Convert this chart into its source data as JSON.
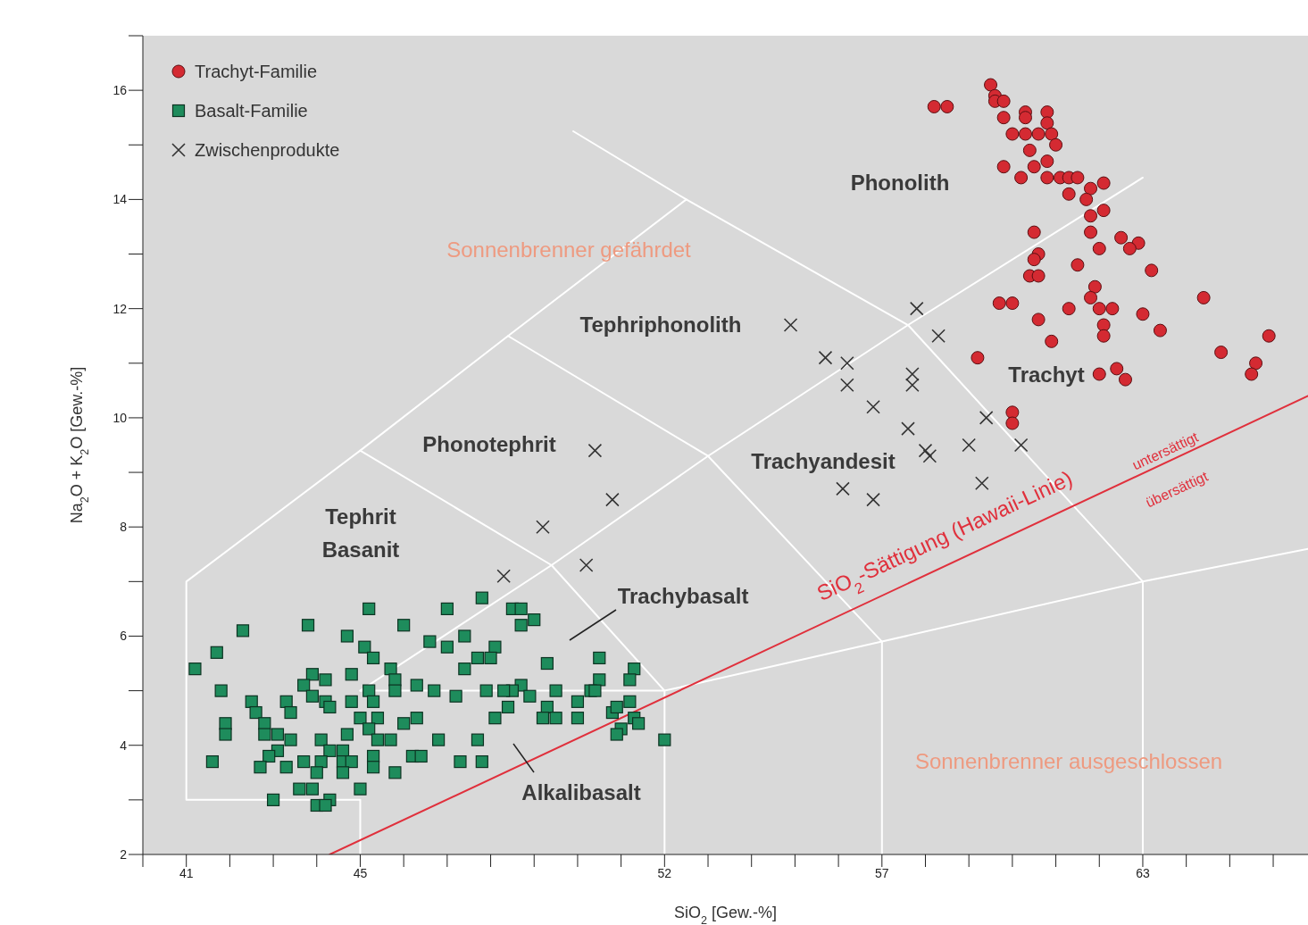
{
  "chart_data": {
    "type": "scatter",
    "xlabel": "SiO$_{2}$ [Gew.-%]",
    "ylabel": "Na$_{2}$O + K$_{2}$O [Gew.-%]",
    "xlim": [
      40,
      66.8
    ],
    "xticks": [
      {
        "value": 40,
        "label": null
      },
      41,
      {
        "value": 42,
        "label": null
      },
      {
        "value": 43,
        "label": null
      },
      {
        "value": 44,
        "label": null
      },
      45,
      {
        "value": 46,
        "label": null
      },
      {
        "value": 47,
        "label": null
      },
      {
        "value": 48,
        "label": null
      },
      {
        "value": 49,
        "label": null
      },
      {
        "value": 50,
        "label": null
      },
      {
        "value": 51,
        "label": null
      },
      52,
      {
        "value": 53,
        "label": null
      },
      {
        "value": 54,
        "label": null
      },
      {
        "value": 55,
        "label": null
      },
      {
        "value": 56,
        "label": null
      },
      57,
      {
        "value": 58,
        "label": null
      },
      {
        "value": 59,
        "label": null
      },
      {
        "value": 60,
        "label": null
      },
      {
        "value": 61,
        "label": null
      },
      {
        "value": 62,
        "label": null
      },
      63,
      {
        "value": 64,
        "label": null
      },
      {
        "value": 65,
        "label": null
      },
      {
        "value": 66,
        "label": null
      }
    ],
    "ylim": [
      2,
      17
    ],
    "yticks": [
      2,
      {
        "value": 3,
        "label": null
      },
      4,
      {
        "value": 5,
        "label": null
      },
      6,
      {
        "value": 7,
        "label": null
      },
      8,
      {
        "value": 9,
        "label": null
      },
      10,
      {
        "value": 11,
        "label": null
      },
      12,
      {
        "value": 13,
        "label": null
      },
      14,
      {
        "value": 15,
        "label": null
      },
      16,
      {
        "value": 17,
        "label": null
      }
    ],
    "legend": "top left",
    "series": [
      {
        "name": "Trachyt-Familie",
        "marker": "circle",
        "color": "#d42a32",
        "x": [
          58.2,
          58.5,
          59.5,
          59.6,
          59.6,
          59.8,
          59.8,
          60.3,
          60.8,
          60.3,
          60.8,
          60.0,
          60.3,
          60.6,
          60.9,
          61.0,
          60.4,
          60.8,
          59.8,
          60.2,
          60.5,
          60.8,
          61.1,
          61.3,
          61.3,
          61.5,
          61.8,
          62.1,
          61.7,
          62.1,
          61.8,
          61.8,
          62.0,
          62.5,
          62.9,
          62.7,
          60.5,
          60.6,
          60.5,
          60.4,
          60.6,
          61.5,
          63.2,
          61.9,
          61.8,
          62.0,
          62.3,
          62.1,
          62.1,
          59.7,
          60.0,
          61.3,
          60.6,
          63.0,
          64.4,
          63.4,
          60.9,
          59.2,
          65.9,
          64.8,
          65.6,
          65.5,
          62.0,
          62.4,
          62.6,
          60.0,
          60.0
        ],
        "values": [
          15.7,
          15.7,
          16.1,
          15.9,
          15.8,
          15.8,
          15.5,
          15.6,
          15.6,
          15.5,
          15.4,
          15.2,
          15.2,
          15.2,
          15.2,
          15.0,
          14.9,
          14.7,
          14.6,
          14.4,
          14.6,
          14.4,
          14.4,
          14.4,
          14.1,
          14.4,
          14.2,
          14.3,
          14.0,
          13.8,
          13.7,
          13.4,
          13.1,
          13.3,
          13.2,
          13.1,
          13.4,
          13.0,
          12.9,
          12.6,
          12.6,
          12.8,
          12.7,
          12.4,
          12.2,
          12.0,
          12.0,
          11.7,
          11.5,
          12.1,
          12.1,
          12.0,
          11.8,
          11.9,
          12.2,
          11.6,
          11.4,
          11.1,
          11.5,
          11.2,
          11.0,
          10.8,
          10.8,
          10.9,
          10.7,
          10.1,
          9.9
        ]
      },
      {
        "name": "Basalt-Familie",
        "marker": "square",
        "color": "#1e8c5c",
        "x": [
          45.2,
          46.0,
          43.8,
          42.3,
          44.7,
          46.6,
          41.7,
          41.2,
          45.1,
          45.3,
          45.7,
          45.8,
          41.8,
          43.9,
          44.2,
          43.7,
          44.8,
          46.3,
          45.8,
          43.9,
          44.2,
          42.5,
          43.3,
          45.2,
          45.3,
          44.8,
          44.3,
          43.4,
          42.6,
          41.9,
          41.9,
          42.8,
          45.0,
          45.4,
          46.0,
          46.3,
          42.8,
          44.7,
          45.2,
          43.1,
          43.4,
          44.1,
          45.4,
          45.7,
          43.1,
          44.3,
          44.6,
          42.9,
          43.7,
          44.1,
          44.6,
          44.8,
          45.3,
          46.2,
          46.4,
          41.6,
          42.7,
          43.3,
          45.3,
          44.0,
          44.6,
          45.8,
          43.6,
          43.9,
          45.0,
          43.0,
          44.0,
          44.3,
          44.2,
          47.8,
          47.0,
          48.5,
          48.7,
          49.0,
          48.7,
          47.0,
          47.4,
          48.1,
          48.0,
          47.7,
          47.4,
          49.3,
          50.5,
          51.3,
          51.2,
          50.5,
          50.3,
          50.4,
          50.0,
          49.5,
          48.7,
          48.9,
          48.5,
          48.3,
          47.9,
          48.4,
          48.1,
          47.2,
          46.7,
          49.3,
          49.2,
          49.5,
          50.0,
          50.8,
          50.9,
          51.2,
          51.3,
          51.0,
          50.9,
          51.4,
          52.0,
          46.8,
          47.7,
          47.3,
          47.8
        ],
        "values": [
          6.5,
          6.2,
          6.2,
          6.1,
          6.0,
          5.9,
          5.7,
          5.4,
          5.8,
          5.6,
          5.4,
          5.2,
          5.0,
          5.3,
          5.2,
          5.1,
          5.3,
          5.1,
          5.0,
          4.9,
          4.8,
          4.8,
          4.8,
          5.0,
          4.8,
          4.8,
          4.7,
          4.6,
          4.6,
          4.4,
          4.2,
          4.4,
          4.5,
          4.5,
          4.4,
          4.5,
          4.2,
          4.2,
          4.3,
          4.2,
          4.1,
          4.1,
          4.1,
          4.1,
          3.9,
          3.9,
          3.9,
          3.8,
          3.7,
          3.7,
          3.7,
          3.7,
          3.8,
          3.8,
          3.8,
          3.7,
          3.6,
          3.6,
          3.6,
          3.5,
          3.5,
          3.5,
          3.2,
          3.2,
          3.2,
          3.0,
          2.9,
          3.0,
          2.9,
          6.7,
          6.5,
          6.5,
          6.5,
          6.3,
          6.2,
          5.8,
          6.0,
          5.8,
          5.6,
          5.6,
          5.4,
          5.5,
          5.6,
          5.4,
          5.2,
          5.2,
          5.0,
          5.0,
          4.8,
          5.0,
          5.1,
          4.9,
          5.0,
          5.0,
          5.0,
          4.7,
          4.5,
          4.9,
          5.0,
          4.7,
          4.5,
          4.5,
          4.5,
          4.6,
          4.7,
          4.8,
          4.5,
          4.3,
          4.2,
          4.4,
          4.1,
          4.1,
          4.1,
          3.7,
          3.7
        ]
      },
      {
        "name": "Zwischenprodukte",
        "marker": "cross",
        "color": "#333333",
        "x": [
          54.9,
          55.7,
          56.2,
          56.2,
          57.8,
          58.3,
          57.7,
          57.7,
          56.8,
          57.6,
          58.0,
          58.1,
          59.0,
          59.4,
          60.2,
          59.3,
          56.1,
          56.8,
          50.4,
          50.8,
          49.2,
          50.2,
          48.3
        ],
        "values": [
          11.7,
          11.1,
          11.0,
          10.6,
          12.0,
          11.5,
          10.8,
          10.6,
          10.2,
          9.8,
          9.4,
          9.3,
          9.5,
          10.0,
          9.5,
          8.8,
          8.7,
          8.5,
          9.4,
          8.5,
          8.0,
          7.3,
          7.1
        ]
      },
      {
        "type": "line",
        "color": "#ffffff",
        "x": [
          45,
          45,
          41,
          41,
          45,
          48.4,
          52.5,
          57.6,
          63,
          63
        ],
        "values": [
          2,
          3,
          3,
          7,
          9.4,
          11.5,
          14,
          11.7,
          7,
          2
        ]
      },
      {
        "type": "line",
        "color": "#ffffff",
        "x": [
          49.9,
          52.5
        ],
        "values": [
          15.25,
          14
        ]
      },
      {
        "type": "line",
        "color": "#ffffff",
        "x": [
          45,
          49.4,
          52,
          52
        ],
        "values": [
          9.4,
          7.3,
          5,
          2
        ]
      },
      {
        "type": "line",
        "color": "#ffffff",
        "x": [
          45,
          49.4,
          53,
          57.6,
          63
        ],
        "values": [
          5,
          7.3,
          9.3,
          11.7,
          14.4
        ]
      },
      {
        "type": "line",
        "color": "#ffffff",
        "x": [
          45,
          52,
          57,
          63,
          66.8
        ],
        "values": [
          5,
          5,
          5.9,
          7,
          7.6
        ]
      },
      {
        "type": "line",
        "color": "#ffffff",
        "x": [
          48.4,
          53,
          57,
          57
        ],
        "values": [
          11.5,
          9.3,
          5.9,
          2
        ]
      },
      {
        "type": "line",
        "color": "#e0303c",
        "x": [
          44.3,
          66.8
        ],
        "values": [
          2,
          10.4
        ]
      }
    ],
    "annotations": [
      "Phonolith",
      "Sonnenbrenner gefährdet",
      "Tephriphonolith",
      "Phonotephrit",
      "Tephrit",
      "Basanit",
      "Trachyandesit",
      "Trachyt",
      "Trachybasalt",
      "Alkalibasalt",
      "Sonnenbrenner ausgeschlossen",
      "SiO$_{2}$-Sättigung (Hawaii-Linie)",
      "untersättigt",
      "übersättigt"
    ]
  }
}
